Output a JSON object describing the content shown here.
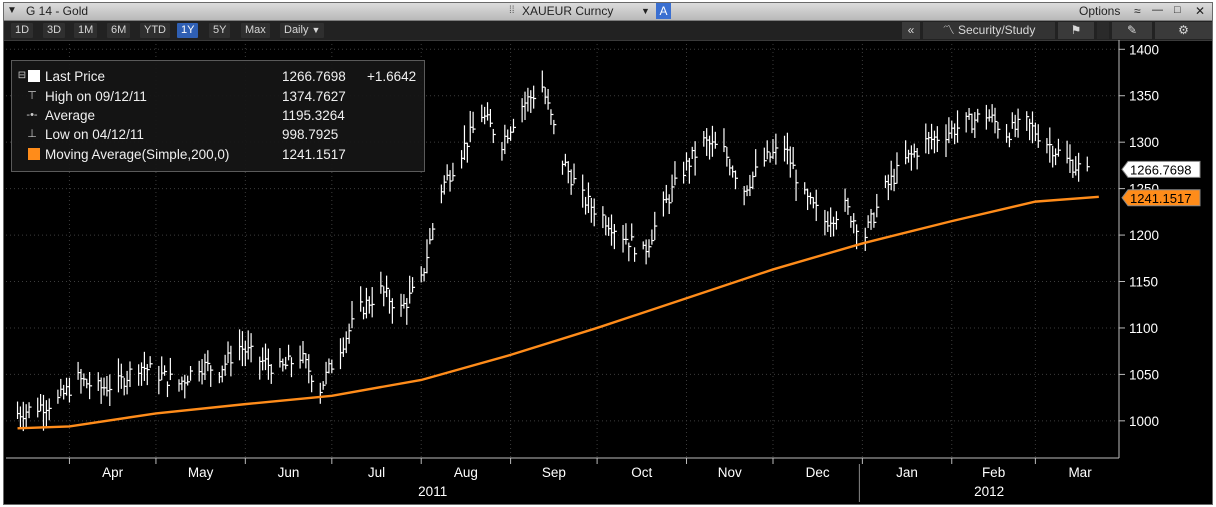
{
  "window": {
    "title": "G 14 - Gold",
    "security": "XAUEUR Curncy",
    "security_tag": "A",
    "options_label": "Options"
  },
  "toolbar": {
    "ranges": [
      "1D",
      "3D",
      "1M",
      "6M",
      "YTD",
      "1Y",
      "5Y",
      "Max"
    ],
    "selected_range": "1Y",
    "frequency": "Daily",
    "security_study_label": "Security/Study"
  },
  "legend": {
    "last_price": {
      "label": "Last Price",
      "value": "1266.7698",
      "change": "+1.6642"
    },
    "high": {
      "label": "High on 09/12/11",
      "value": "1374.7627"
    },
    "average": {
      "label": "Average",
      "value": "1195.3264"
    },
    "low": {
      "label": "Low on 04/12/11",
      "value": "998.7925"
    },
    "moving_average": {
      "label": "Moving Average(Simple,200,0)",
      "value": "1241.1517"
    }
  },
  "colors": {
    "price": "#ffffff",
    "moving_average": "#ff8c1a",
    "background": "#000000",
    "grid": "#3c3c3c",
    "axis_text": "#ffffff"
  },
  "chart_data": {
    "type": "line",
    "y_axis": {
      "min": 960,
      "max": 1410,
      "ticks": [
        1000,
        1050,
        1100,
        1150,
        1200,
        1250,
        1300,
        1350,
        1400
      ],
      "side": "right",
      "grid": true
    },
    "x_axis": {
      "months": [
        "Apr",
        "May",
        "Jun",
        "Jul",
        "Aug",
        "Sep",
        "Oct",
        "Nov",
        "Dec",
        "Jan",
        "Feb",
        "Mar"
      ],
      "years": [
        "2011",
        "2012"
      ]
    },
    "last_price_tag": "1266.7698",
    "moving_average_tag": "1241.1517",
    "series": [
      {
        "name": "Last Price",
        "style": "hlc-bars",
        "x": [
          "2011-03-14",
          "2011-03-21",
          "2011-03-28",
          "2011-04-04",
          "2011-04-11",
          "2011-04-18",
          "2011-04-25",
          "2011-05-02",
          "2011-05-09",
          "2011-05-16",
          "2011-05-23",
          "2011-05-30",
          "2011-06-06",
          "2011-06-13",
          "2011-06-20",
          "2011-06-27",
          "2011-07-04",
          "2011-07-11",
          "2011-07-18",
          "2011-07-25",
          "2011-08-01",
          "2011-08-08",
          "2011-08-15",
          "2011-08-22",
          "2011-08-29",
          "2011-09-05",
          "2011-09-12",
          "2011-09-19",
          "2011-09-26",
          "2011-10-03",
          "2011-10-10",
          "2011-10-17",
          "2011-10-24",
          "2011-10-31",
          "2011-11-07",
          "2011-11-14",
          "2011-11-21",
          "2011-11-28",
          "2011-12-05",
          "2011-12-12",
          "2011-12-19",
          "2011-12-26",
          "2012-01-02",
          "2012-01-09",
          "2012-01-16",
          "2012-01-23",
          "2012-01-30",
          "2012-02-06",
          "2012-02-13",
          "2012-02-20",
          "2012-02-27",
          "2012-03-05",
          "2012-03-12",
          "2012-03-19"
        ],
        "values": [
          1008,
          1015,
          1022,
          1045,
          1035,
          1040,
          1060,
          1050,
          1040,
          1060,
          1055,
          1080,
          1065,
          1055,
          1070,
          1035,
          1080,
          1120,
          1140,
          1120,
          1150,
          1250,
          1290,
          1330,
          1300,
          1340,
          1360,
          1280,
          1240,
          1220,
          1200,
          1180,
          1230,
          1270,
          1300,
          1290,
          1250,
          1280,
          1295,
          1240,
          1215,
          1230,
          1200,
          1250,
          1280,
          1300,
          1310,
          1320,
          1330,
          1310,
          1320,
          1300,
          1280,
          1266.77
        ]
      },
      {
        "name": "Moving Average(Simple,200,0)",
        "style": "line",
        "x": [
          "2011-03-14",
          "2011-04-01",
          "2011-05-01",
          "2011-06-01",
          "2011-07-01",
          "2011-08-01",
          "2011-09-01",
          "2011-10-01",
          "2011-11-01",
          "2011-12-01",
          "2012-01-01",
          "2012-02-01",
          "2012-03-01",
          "2012-03-23"
        ],
        "values": [
          992,
          994,
          1008,
          1018,
          1027,
          1044,
          1071,
          1100,
          1132,
          1163,
          1191,
          1215,
          1236,
          1241.15
        ]
      }
    ]
  }
}
